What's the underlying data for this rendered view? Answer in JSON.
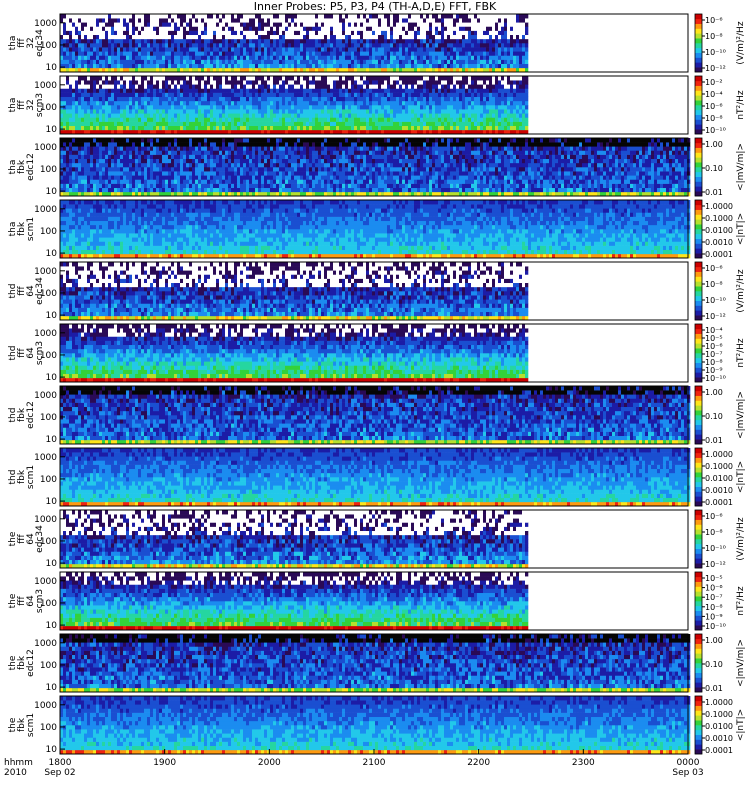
{
  "title": "Inner Probes: P5, P3, P4 (TH-A,D,E) FFT, FBK",
  "colors": {
    "background": "#ffffff",
    "colormap": [
      "#2a0a56",
      "#1c1ca6",
      "#1a4fd1",
      "#1b8cf0",
      "#22c8ea",
      "#25d6a0",
      "#33d23a",
      "#b6e02d",
      "#ffe51a",
      "#ff9a10",
      "#f0230f",
      "#cc0000"
    ]
  },
  "chart_data": [
    {
      "type": "heatmap",
      "ylabel": [
        "tha",
        "fff",
        "32",
        "edc34"
      ],
      "yticks": [
        "10",
        "100",
        "1000"
      ],
      "cbar_label": "(V/m)²/Hz",
      "cbar_ticks": [
        "10⁻⁶",
        "10⁻⁸",
        "10⁻¹⁰",
        "10⁻¹²"
      ],
      "data_end": "2228"
    },
    {
      "type": "heatmap",
      "ylabel": [
        "tha",
        "fff",
        "32",
        "scm3"
      ],
      "yticks": [
        "10",
        "100",
        "1000"
      ],
      "cbar_label": "nT²/Hz",
      "cbar_ticks": [
        "10⁻²",
        "10⁻⁴",
        "10⁻⁶",
        "10⁻⁸",
        "10⁻¹⁰"
      ],
      "data_end": "2228"
    },
    {
      "type": "heatmap",
      "ylabel": [
        "tha",
        "fbk",
        "edc12"
      ],
      "yticks": [
        "10",
        "100",
        "1000"
      ],
      "cbar_label": "<|mV/m|>",
      "cbar_ticks": [
        "1.00",
        "0.10",
        "0.01"
      ],
      "data_end": "0000"
    },
    {
      "type": "heatmap",
      "ylabel": [
        "tha",
        "fbk",
        "scm1"
      ],
      "yticks": [
        "10",
        "100",
        "1000"
      ],
      "cbar_label": "<|nT|>",
      "cbar_ticks": [
        "1.0000",
        "0.1000",
        "0.0100",
        "0.0010",
        "0.0001"
      ],
      "data_end": "0000"
    },
    {
      "type": "heatmap",
      "ylabel": [
        "thd",
        "fff",
        "64",
        "edc34"
      ],
      "yticks": [
        "10",
        "100",
        "1000"
      ],
      "cbar_label": "(V/m)²/Hz",
      "cbar_ticks": [
        "10⁻⁶",
        "10⁻⁸",
        "10⁻¹⁰",
        "10⁻¹²"
      ],
      "data_end": "2228"
    },
    {
      "type": "heatmap",
      "ylabel": [
        "thd",
        "fff",
        "64",
        "scm3"
      ],
      "yticks": [
        "10",
        "100",
        "1000"
      ],
      "cbar_label": "nT²/Hz",
      "cbar_ticks": [
        "10⁻⁴",
        "10⁻⁵",
        "10⁻⁶",
        "10⁻⁷",
        "10⁻⁸",
        "10⁻⁹",
        "10⁻¹⁰"
      ],
      "data_end": "2228"
    },
    {
      "type": "heatmap",
      "ylabel": [
        "thd",
        "fbk",
        "edc12"
      ],
      "yticks": [
        "10",
        "100",
        "1000"
      ],
      "cbar_label": "<|mV/m|>",
      "cbar_ticks": [
        "1.00",
        "0.10",
        "0.01"
      ],
      "data_end": "0000"
    },
    {
      "type": "heatmap",
      "ylabel": [
        "thd",
        "fbk",
        "scm1"
      ],
      "yticks": [
        "10",
        "100",
        "1000"
      ],
      "cbar_label": "<|nT|>",
      "cbar_ticks": [
        "1.0000",
        "0.1000",
        "0.0100",
        "0.0010",
        "0.0001"
      ],
      "data_end": "0000"
    },
    {
      "type": "heatmap",
      "ylabel": [
        "the",
        "fff",
        "64",
        "edc34"
      ],
      "yticks": [
        "10",
        "100",
        "1000"
      ],
      "cbar_label": "(V/m)²/Hz",
      "cbar_ticks": [
        "10⁻⁶",
        "10⁻⁸",
        "10⁻¹⁰",
        "10⁻¹²"
      ],
      "data_end": "2228"
    },
    {
      "type": "heatmap",
      "ylabel": [
        "the",
        "fff",
        "64",
        "scm3"
      ],
      "yticks": [
        "10",
        "100",
        "1000"
      ],
      "cbar_label": "nT²/Hz",
      "cbar_ticks": [
        "10⁻⁵",
        "10⁻⁶",
        "10⁻⁷",
        "10⁻⁸",
        "10⁻⁹",
        "10⁻¹⁰"
      ],
      "data_end": "2228"
    },
    {
      "type": "heatmap",
      "ylabel": [
        "the",
        "fbk",
        "edc12"
      ],
      "yticks": [
        "10",
        "100",
        "1000"
      ],
      "cbar_label": "<|mV/m|>",
      "cbar_ticks": [
        "1.00",
        "0.10",
        "0.01"
      ],
      "data_end": "0000"
    },
    {
      "type": "heatmap",
      "ylabel": [
        "the",
        "fbk",
        "scm1"
      ],
      "yticks": [
        "10",
        "100",
        "1000"
      ],
      "cbar_label": "<|nT|>",
      "cbar_ticks": [
        "1.0000",
        "0.1000",
        "0.0100",
        "0.0010",
        "0.0001"
      ],
      "data_end": "0000"
    }
  ],
  "xaxis": {
    "ticks": [
      {
        "label": "1800",
        "sub": "Sep 02"
      },
      {
        "label": "1900",
        "sub": ""
      },
      {
        "label": "2000",
        "sub": ""
      },
      {
        "label": "2100",
        "sub": ""
      },
      {
        "label": "2200",
        "sub": ""
      },
      {
        "label": "2300",
        "sub": ""
      },
      {
        "label": "0000",
        "sub": "Sep 03"
      }
    ],
    "corner_top": "hhmm",
    "corner_bottom": "2010"
  }
}
